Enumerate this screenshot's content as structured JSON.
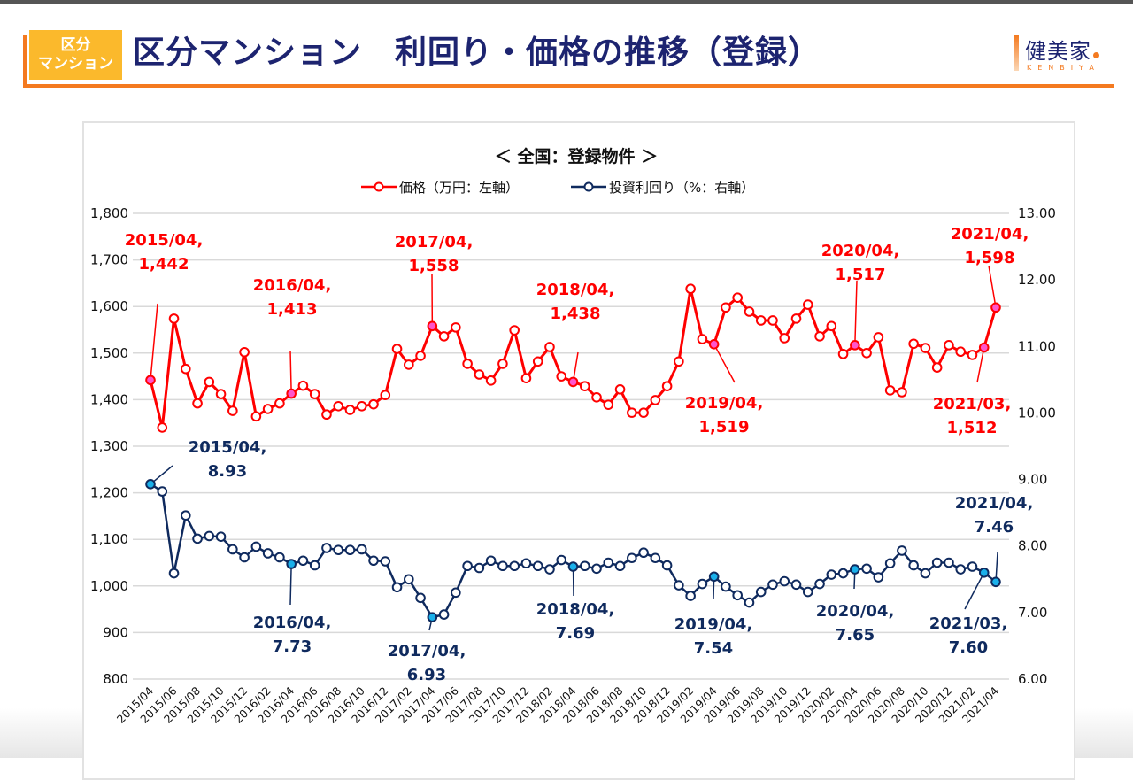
{
  "header": {
    "badge_line1": "区分",
    "badge_line2": "マンション",
    "title": "区分マンション　利回り・価格の推移（登録）",
    "logo_main": "健美家",
    "logo_sub": "KENBIYA",
    "accent_color": "#f47a20",
    "badge_color": "#fbb92c",
    "title_color": "#1d2470"
  },
  "chart_data": {
    "type": "line",
    "title": "＜ 全国：登録物件 ＞",
    "legend_position": "top-center",
    "grid": true,
    "xlabel": "",
    "ylabel_left": "",
    "ylabel_right": "",
    "ylim_left": [
      800,
      1800
    ],
    "ylim_right": [
      6.0,
      13.0
    ],
    "yticks_left": [
      "1,800",
      "1,700",
      "1,600",
      "1,500",
      "1,400",
      "1,300",
      "1,200",
      "1,100",
      "1,000",
      "900",
      "800"
    ],
    "yticks_right": [
      "13.00",
      "12.00",
      "11.00",
      "10.00",
      "9.00",
      "8.00",
      "7.00",
      "6.00"
    ],
    "x": [
      "2015/04",
      "2015/05",
      "2015/06",
      "2015/07",
      "2015/08",
      "2015/09",
      "2015/10",
      "2015/11",
      "2015/12",
      "2016/01",
      "2016/02",
      "2016/03",
      "2016/04",
      "2016/05",
      "2016/06",
      "2016/07",
      "2016/08",
      "2016/09",
      "2016/10",
      "2016/11",
      "2016/12",
      "2017/01",
      "2017/02",
      "2017/03",
      "2017/04",
      "2017/05",
      "2017/06",
      "2017/07",
      "2017/08",
      "2017/09",
      "2017/10",
      "2017/11",
      "2017/12",
      "2018/01",
      "2018/02",
      "2018/03",
      "2018/04",
      "2018/05",
      "2018/06",
      "2018/07",
      "2018/08",
      "2018/09",
      "2018/10",
      "2018/11",
      "2018/12",
      "2019/01",
      "2019/02",
      "2019/03",
      "2019/04",
      "2019/05",
      "2019/06",
      "2019/07",
      "2019/08",
      "2019/09",
      "2019/10",
      "2019/11",
      "2019/12",
      "2020/01",
      "2020/02",
      "2020/03",
      "2020/04",
      "2020/05",
      "2020/06",
      "2020/07",
      "2020/08",
      "2020/09",
      "2020/10",
      "2020/11",
      "2020/12",
      "2021/01",
      "2021/02",
      "2021/03",
      "2021/04"
    ],
    "xtick_labels": [
      "2015/04",
      "2015/06",
      "2015/08",
      "2015/10",
      "2015/12",
      "2016/02",
      "2016/04",
      "2016/06",
      "2016/08",
      "2016/10",
      "2016/12",
      "2017/02",
      "2017/04",
      "2017/06",
      "2017/08",
      "2017/10",
      "2017/12",
      "2018/02",
      "2018/04",
      "2018/06",
      "2018/08",
      "2018/10",
      "2018/12",
      "2019/02",
      "2019/04",
      "2019/06",
      "2019/08",
      "2019/10",
      "2019/12",
      "2020/02",
      "2020/04",
      "2020/06",
      "2020/08",
      "2020/10",
      "2020/12",
      "2021/02",
      "2021/04"
    ],
    "series": [
      {
        "name": "価格（万円：左軸）",
        "axis": "left",
        "color": "#ff0000",
        "highlight_color": "#ff55cc",
        "values": [
          1442,
          1340,
          1574,
          1466,
          1392,
          1438,
          1412,
          1376,
          1502,
          1364,
          1380,
          1392,
          1413,
          1430,
          1412,
          1368,
          1386,
          1378,
          1386,
          1390,
          1410,
          1509,
          1475,
          1494,
          1558,
          1536,
          1555,
          1477,
          1454,
          1441,
          1477,
          1549,
          1446,
          1482,
          1513,
          1450,
          1438,
          1429,
          1405,
          1389,
          1422,
          1372,
          1372,
          1399,
          1429,
          1482,
          1638,
          1530,
          1519,
          1598,
          1619,
          1589,
          1570,
          1570,
          1532,
          1574,
          1604,
          1536,
          1558,
          1498,
          1517,
          1500,
          1534,
          1420,
          1416,
          1520,
          1511,
          1469,
          1517,
          1503,
          1496,
          1512,
          1598
        ],
        "annotations": [
          {
            "x": "2015/04",
            "label1": "2015/04,",
            "label2": "1,442"
          },
          {
            "x": "2016/04",
            "label1": "2016/04,",
            "label2": "1,413"
          },
          {
            "x": "2017/04",
            "label1": "2017/04,",
            "label2": "1,558"
          },
          {
            "x": "2018/04",
            "label1": "2018/04,",
            "label2": "1,438"
          },
          {
            "x": "2019/04",
            "label1": "2019/04,",
            "label2": "1,519"
          },
          {
            "x": "2020/04",
            "label1": "2020/04,",
            "label2": "1,517"
          },
          {
            "x": "2021/03",
            "label1": "2021/03,",
            "label2": "1,512"
          },
          {
            "x": "2021/04",
            "label1": "2021/04,",
            "label2": "1,598"
          }
        ]
      },
      {
        "name": "投資利回り（%：右軸）",
        "axis": "right",
        "color": "#0f2a5e",
        "highlight_color": "#1ab0ea",
        "values": [
          8.93,
          8.82,
          7.59,
          8.46,
          8.11,
          8.15,
          8.14,
          7.95,
          7.83,
          7.99,
          7.89,
          7.83,
          7.73,
          7.78,
          7.71,
          7.97,
          7.94,
          7.94,
          7.95,
          7.78,
          7.77,
          7.38,
          7.5,
          7.22,
          6.93,
          6.97,
          7.3,
          7.7,
          7.67,
          7.78,
          7.7,
          7.7,
          7.74,
          7.7,
          7.65,
          7.79,
          7.69,
          7.7,
          7.66,
          7.75,
          7.7,
          7.82,
          7.9,
          7.82,
          7.71,
          7.41,
          7.25,
          7.43,
          7.54,
          7.39,
          7.26,
          7.15,
          7.31,
          7.42,
          7.47,
          7.42,
          7.31,
          7.43,
          7.57,
          7.59,
          7.65,
          7.66,
          7.53,
          7.74,
          7.93,
          7.71,
          7.59,
          7.75,
          7.75,
          7.65,
          7.69,
          7.6,
          7.46
        ],
        "annotations": [
          {
            "x": "2015/04",
            "label1": "2015/04,",
            "label2": "8.93"
          },
          {
            "x": "2016/04",
            "label1": "2016/04,",
            "label2": "7.73"
          },
          {
            "x": "2017/04",
            "label1": "2017/04,",
            "label2": "6.93"
          },
          {
            "x": "2018/04",
            "label1": "2018/04,",
            "label2": "7.69"
          },
          {
            "x": "2019/04",
            "label1": "2019/04,",
            "label2": "7.54"
          },
          {
            "x": "2020/04",
            "label1": "2020/04,",
            "label2": "7.65"
          },
          {
            "x": "2021/03",
            "label1": "2021/03,",
            "label2": "7.60"
          },
          {
            "x": "2021/04",
            "label1": "2021/04,",
            "label2": "7.46"
          }
        ]
      }
    ]
  }
}
